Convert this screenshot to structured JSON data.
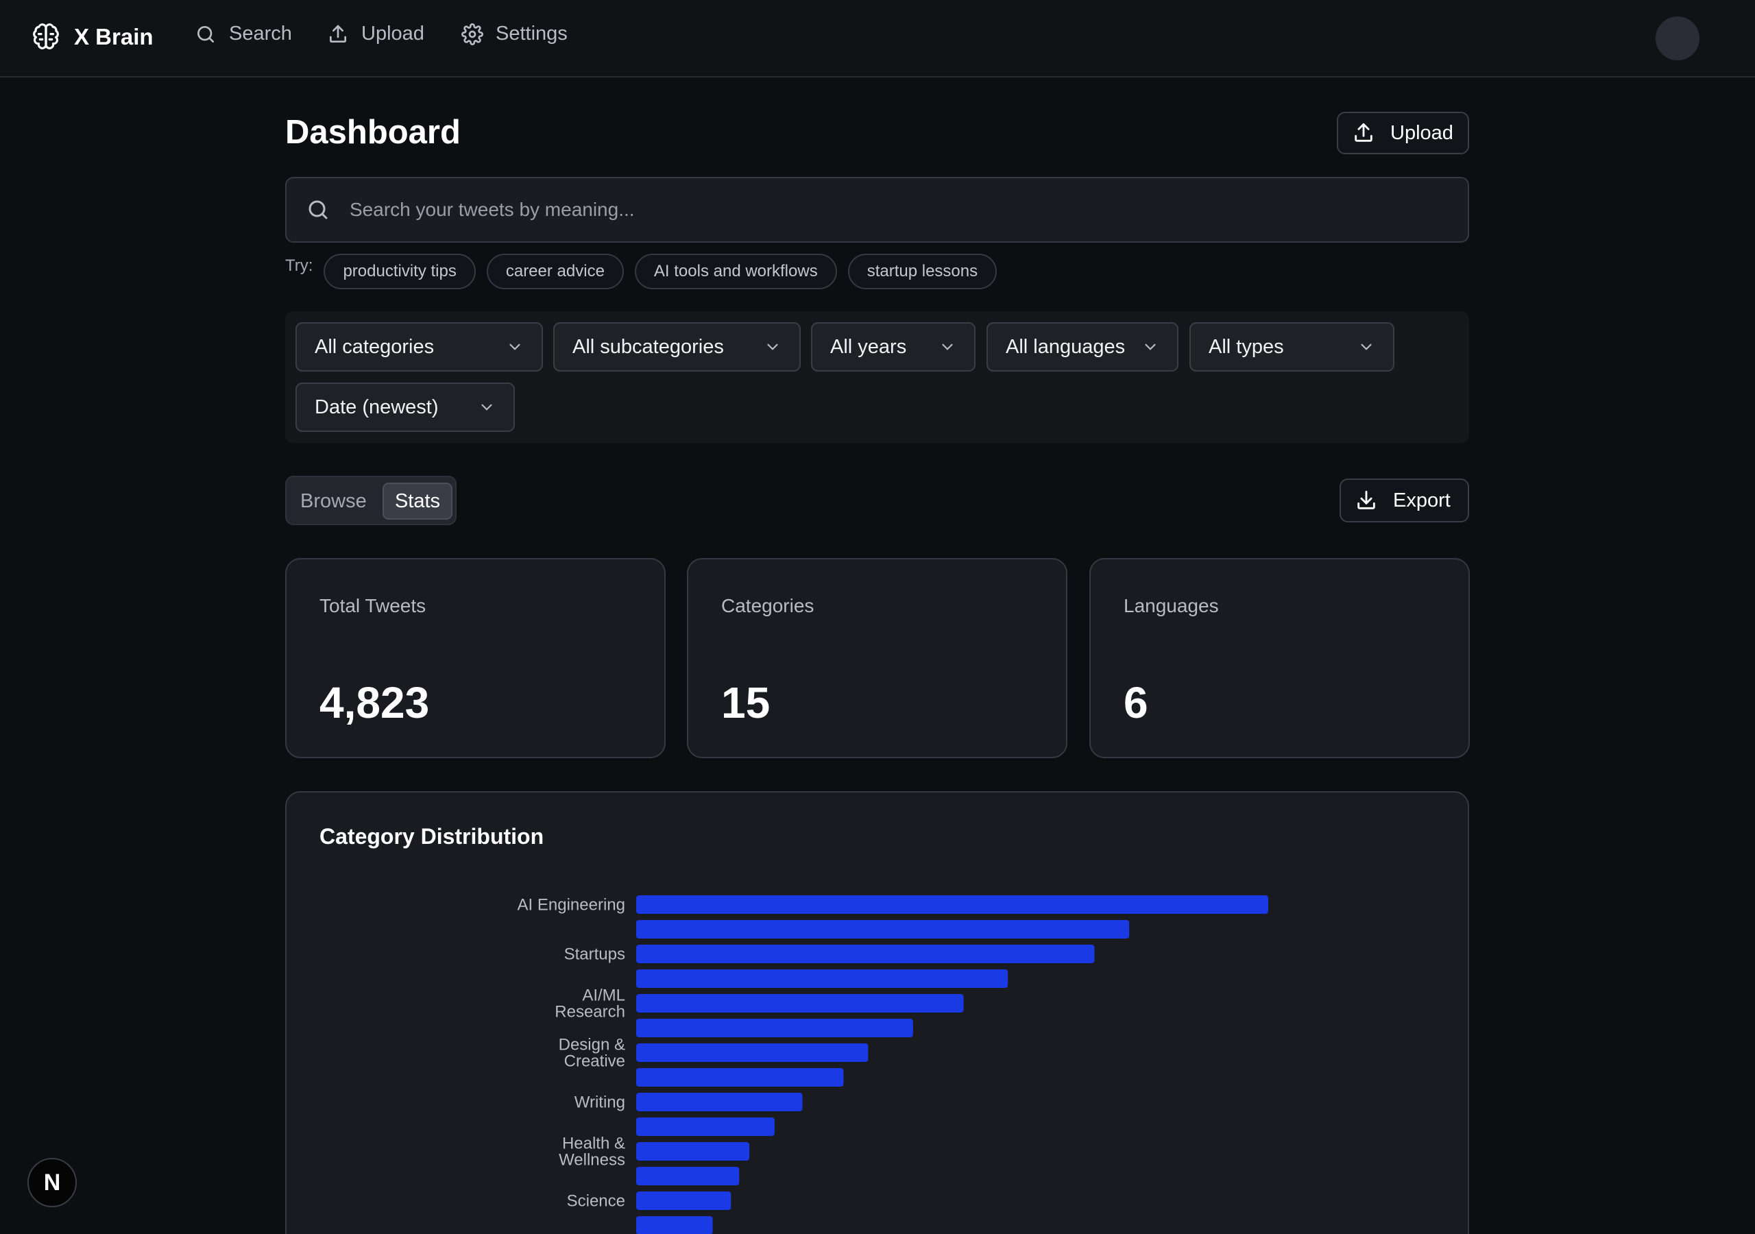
{
  "nav": {
    "brand": "X Brain",
    "links": [
      {
        "label": "Search",
        "icon": "search-icon"
      },
      {
        "label": "Upload",
        "icon": "upload-icon"
      },
      {
        "label": "Settings",
        "icon": "gear-icon"
      }
    ]
  },
  "header": {
    "title": "Dashboard",
    "upload_label": "Upload"
  },
  "search": {
    "placeholder": "Search your tweets by meaning...",
    "value": ""
  },
  "suggestions": {
    "label": "Try:",
    "items": [
      "productivity tips",
      "career advice",
      "AI tools and workflows",
      "startup lessons"
    ]
  },
  "filters": {
    "category": "All categories",
    "subcategory": "All subcategories",
    "year": "All years",
    "language": "All languages",
    "type": "All types",
    "sort": "Date (newest)"
  },
  "view_toggle": {
    "browse": "Browse",
    "stats": "Stats",
    "active": "stats"
  },
  "export_label": "Export",
  "stats": [
    {
      "label": "Total Tweets",
      "value": "4,823"
    },
    {
      "label": "Categories",
      "value": "15"
    },
    {
      "label": "Languages",
      "value": "6"
    }
  ],
  "chart_data": {
    "type": "bar",
    "orientation": "horizontal",
    "title": "Category Distribution",
    "categories": [
      "AI Engineering",
      "",
      "Startups",
      "",
      "AI/ML Research",
      "",
      "Design & Creative",
      "",
      "Writing",
      "",
      "Health & Wellness",
      "",
      "Science",
      ""
    ],
    "values": [
      1000,
      780,
      725,
      588,
      518,
      438,
      367,
      328,
      263,
      219,
      179,
      163,
      150,
      121
    ],
    "xlim": [
      0,
      1000
    ],
    "grid": false,
    "legend": "none",
    "bar_color": "#1a3ae6"
  },
  "footer": {
    "next_badge": "N"
  },
  "colors": {
    "background": "#0c0e12",
    "card": "#191b20",
    "border": "#363943",
    "accent": "#1a3ae6"
  }
}
